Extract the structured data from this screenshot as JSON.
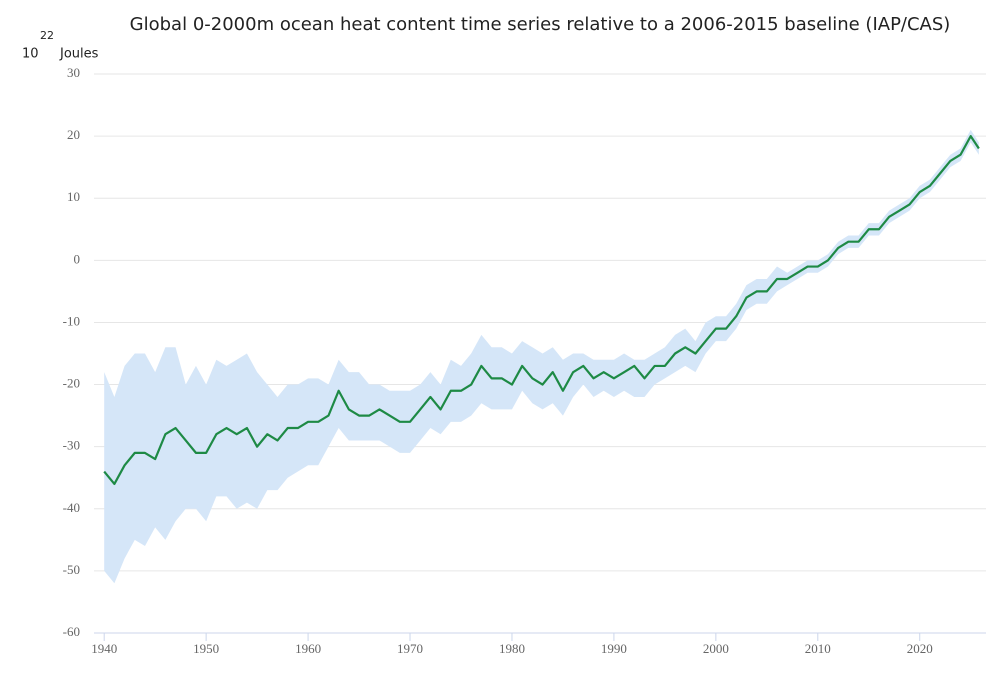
{
  "chart_data": {
    "type": "band-line",
    "title": "Global 0-2000m ocean heat content time series relative to a 2006-2015 baseline (IAP/CAS)",
    "ylabel": {
      "base": "10",
      "exponent": "22",
      "unit": "Joules"
    },
    "x": [
      1940,
      1941,
      1942,
      1943,
      1944,
      1945,
      1946,
      1947,
      1948,
      1949,
      1950,
      1951,
      1952,
      1953,
      1954,
      1955,
      1956,
      1957,
      1958,
      1959,
      1960,
      1961,
      1962,
      1963,
      1964,
      1965,
      1966,
      1967,
      1968,
      1969,
      1970,
      1971,
      1972,
      1973,
      1974,
      1975,
      1976,
      1977,
      1978,
      1979,
      1980,
      1981,
      1982,
      1983,
      1984,
      1985,
      1986,
      1987,
      1988,
      1989,
      1990,
      1991,
      1992,
      1993,
      1994,
      1995,
      1996,
      1997,
      1998,
      1999,
      2000,
      2001,
      2002,
      2003,
      2004,
      2005,
      2006,
      2007,
      2008,
      2009,
      2010,
      2011,
      2012,
      2013,
      2014,
      2015,
      2016,
      2017,
      2018,
      2019,
      2020,
      2021,
      2022,
      2023,
      2024,
      2025,
      2025.8
    ],
    "values": [
      -34,
      -36,
      -33,
      -31,
      -31,
      -32,
      -28,
      -27,
      -29,
      -31,
      -31,
      -28,
      -27,
      -28,
      -27,
      -30,
      -28,
      -29,
      -27,
      -27,
      -26,
      -26,
      -25,
      -21,
      -24,
      -25,
      -25,
      -24,
      -25,
      -26,
      -26,
      -24,
      -22,
      -24,
      -21,
      -21,
      -20,
      -17,
      -19,
      -19,
      -20,
      -17,
      -19,
      -20,
      -18,
      -21,
      -18,
      -17,
      -19,
      -18,
      -19,
      -18,
      -17,
      -19,
      -17,
      -17,
      -15,
      -14,
      -15,
      -13,
      -11,
      -11,
      -9,
      -6,
      -5,
      -5,
      -3,
      -3,
      -2,
      -1,
      -1,
      0,
      2,
      3,
      3,
      5,
      5,
      7,
      8,
      9,
      11,
      12,
      14,
      16,
      17,
      20,
      18
    ],
    "lower": [
      -50,
      -52,
      -48,
      -45,
      -46,
      -43,
      -45,
      -42,
      -40,
      -40,
      -42,
      -38,
      -38,
      -40,
      -39,
      -40,
      -37,
      -37,
      -35,
      -34,
      -33,
      -33,
      -30,
      -27,
      -29,
      -29,
      -29,
      -29,
      -30,
      -31,
      -31,
      -29,
      -27,
      -28,
      -26,
      -26,
      -25,
      -23,
      -24,
      -24,
      -24,
      -21,
      -23,
      -24,
      -23,
      -25,
      -22,
      -20,
      -22,
      -21,
      -22,
      -21,
      -22,
      -22,
      -20,
      -19,
      -18,
      -17,
      -18,
      -15,
      -13,
      -13,
      -11,
      -8,
      -7,
      -7,
      -5,
      -4,
      -3,
      -2,
      -2,
      -1,
      1,
      2,
      2,
      4,
      4,
      6,
      7,
      8,
      10,
      11,
      13,
      15,
      16,
      19,
      17
    ],
    "upper": [
      -18,
      -22,
      -17,
      -15,
      -15,
      -18,
      -14,
      -14,
      -20,
      -17,
      -20,
      -16,
      -17,
      -16,
      -15,
      -18,
      -20,
      -22,
      -20,
      -20,
      -19,
      -19,
      -20,
      -16,
      -18,
      -18,
      -20,
      -20,
      -21,
      -21,
      -21,
      -20,
      -18,
      -20,
      -16,
      -17,
      -15,
      -12,
      -14,
      -14,
      -15,
      -13,
      -14,
      -15,
      -14,
      -16,
      -15,
      -15,
      -16,
      -16,
      -16,
      -15,
      -16,
      -16,
      -15,
      -14,
      -12,
      -11,
      -13,
      -10,
      -9,
      -9,
      -7,
      -4,
      -3,
      -3,
      -1,
      -2,
      -1,
      0,
      0,
      1,
      3,
      4,
      4,
      6,
      6,
      8,
      9,
      10,
      12,
      13,
      15,
      17,
      18,
      21,
      19
    ],
    "color": "#1e8a45",
    "band_color": "#d5e6f8",
    "xlim": [
      1939,
      2026.5
    ],
    "xticks": [
      1940,
      1950,
      1960,
      1970,
      1980,
      1990,
      2000,
      2010,
      2020
    ],
    "ylim": [
      -60,
      30
    ],
    "yticks": [
      -60,
      -50,
      -40,
      -30,
      -20,
      -10,
      0,
      10,
      20,
      30
    ],
    "grid": true
  }
}
